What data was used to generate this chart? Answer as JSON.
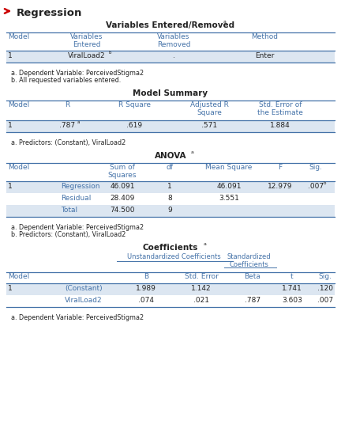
{
  "title": "Regression",
  "blue": "#4472a8",
  "light_blue_row": "#dce6f1",
  "white": "#ffffff",
  "black": "#222222",
  "arrow_color": "#cc0000",
  "t1_title": "Variables Entered/Removed",
  "t1_footnote_a": "a. Dependent Variable: PerceivedStigma2",
  "t1_footnote_b": "b. All requested variables entered.",
  "t2_title": "Model Summary",
  "t2_footnote": "a. Predictors: (Constant), ViralLoad2",
  "t3_title": "ANOVA",
  "t3_rows": [
    [
      "1",
      "Regression",
      "46.091",
      "1",
      "46.091",
      "12.979",
      ".007"
    ],
    [
      "",
      "Residual",
      "28.409",
      "8",
      "3.551",
      "",
      ""
    ],
    [
      "",
      "Total",
      "74.500",
      "9",
      "",
      "",
      ""
    ]
  ],
  "t3_footnote_a": "a. Dependent Variable: PerceivedStigma2",
  "t3_footnote_b": "b. Predictors: (Constant), ViralLoad2",
  "t4_title": "Coefficients",
  "t4_rows": [
    [
      "1",
      "(Constant)",
      "1.989",
      "1.142",
      "",
      "1.741",
      ".120"
    ],
    [
      "",
      "ViralLoad2",
      ".074",
      ".021",
      ".787",
      "3.603",
      ".007"
    ]
  ],
  "t4_footnote": "a. Dependent Variable: PerceivedStigma2"
}
